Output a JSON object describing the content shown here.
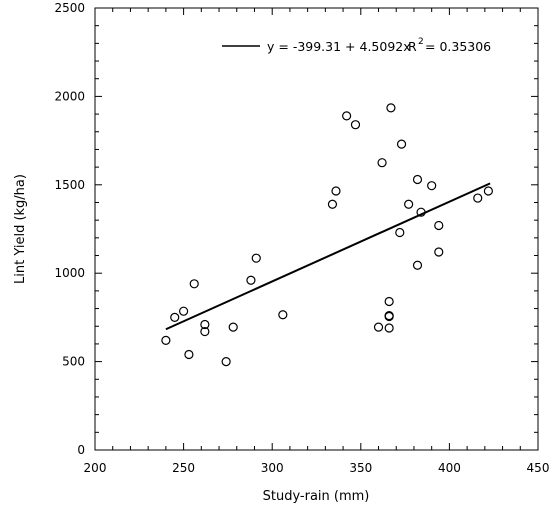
{
  "chart_data": {
    "type": "scatter",
    "xlabel": "Study-rain (mm)",
    "ylabel": "Lint Yield (kg/ha)",
    "xlim": [
      200,
      450
    ],
    "ylim": [
      0,
      2500
    ],
    "xticks": [
      "200",
      "250",
      "300",
      "350",
      "400",
      "450"
    ],
    "yticks": [
      "0",
      "500",
      "1000",
      "1500",
      "2000",
      "2500"
    ],
    "grid": false,
    "points": [
      [
        240,
        620
      ],
      [
        245,
        750
      ],
      [
        250,
        785
      ],
      [
        253,
        540
      ],
      [
        256,
        940
      ],
      [
        262,
        670
      ],
      [
        262,
        710
      ],
      [
        274,
        500
      ],
      [
        278,
        695
      ],
      [
        288,
        960
      ],
      [
        291,
        1085
      ],
      [
        306,
        765
      ],
      [
        334,
        1390
      ],
      [
        336,
        1465
      ],
      [
        342,
        1890
      ],
      [
        347,
        1840
      ],
      [
        360,
        695
      ],
      [
        362,
        1625
      ],
      [
        366,
        690
      ],
      [
        366,
        755
      ],
      [
        366,
        760
      ],
      [
        366,
        840
      ],
      [
        367,
        1935
      ],
      [
        372,
        1230
      ],
      [
        373,
        1730
      ],
      [
        377,
        1390
      ],
      [
        382,
        1045
      ],
      [
        382,
        1530
      ],
      [
        384,
        1345
      ],
      [
        390,
        1495
      ],
      [
        394,
        1270
      ],
      [
        394,
        1120
      ],
      [
        416,
        1425
      ],
      [
        422,
        1465
      ]
    ],
    "trendline": {
      "intercept": -399.31,
      "slope": 4.5092,
      "x_range": [
        240,
        423
      ]
    },
    "legend": {
      "placement": "top-center",
      "equation": "y = -399.31 + 4.5092x",
      "r2_prefix": "R",
      "r2_superscript": "2",
      "r2_value": "= 0.35306"
    }
  }
}
